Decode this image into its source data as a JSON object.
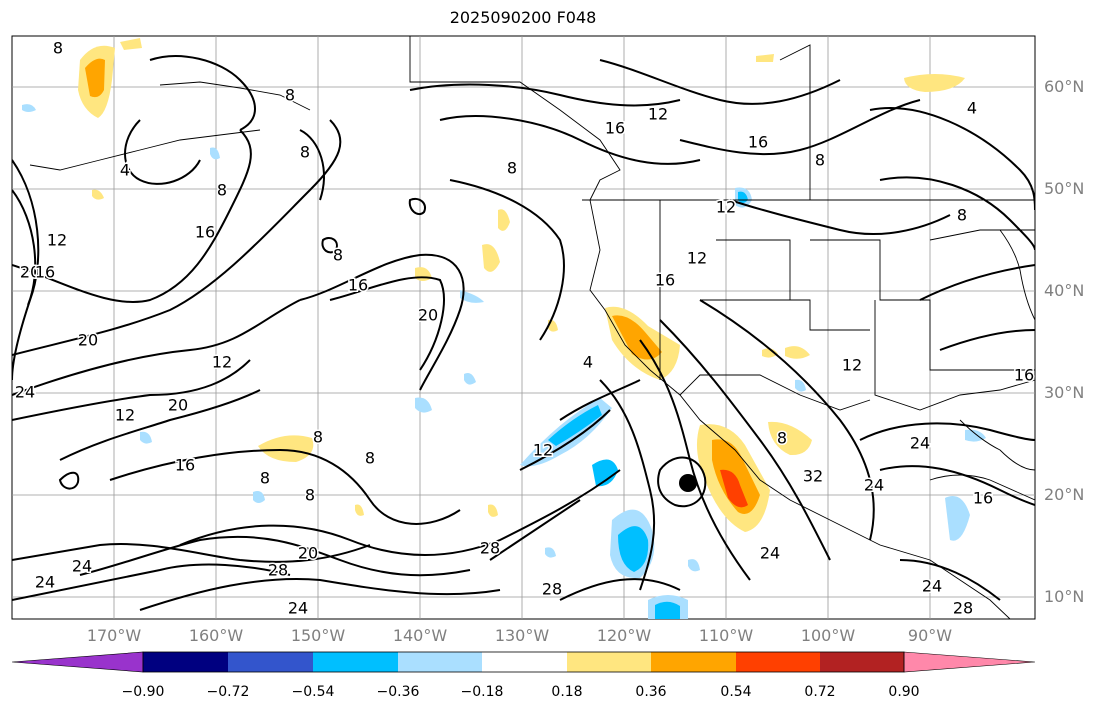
{
  "title": "2025090200 F048",
  "lat_labels": [
    "60°N",
    "50°N",
    "40°N",
    "30°N",
    "20°N",
    "10°N"
  ],
  "lon_labels": [
    "170°W",
    "160°W",
    "150°W",
    "140°W",
    "130°W",
    "120°W",
    "110°W",
    "100°W",
    "90°W"
  ],
  "contour_labels": [
    "4",
    "8",
    "12",
    "16",
    "20",
    "24",
    "28",
    "32"
  ],
  "colorbar": {
    "ticks": [
      "−0.90",
      "−0.72",
      "−0.54",
      "−0.36",
      "−0.18",
      "0.18",
      "0.36",
      "0.54",
      "0.72",
      "0.90"
    ],
    "colors": [
      "#9933cc",
      "#000080",
      "#3355cc",
      "#00bfff",
      "#aadfff",
      "#ffffff",
      "#ffe680",
      "#ffa500",
      "#ff4000",
      "#b22222",
      "#ff88aa"
    ]
  }
}
